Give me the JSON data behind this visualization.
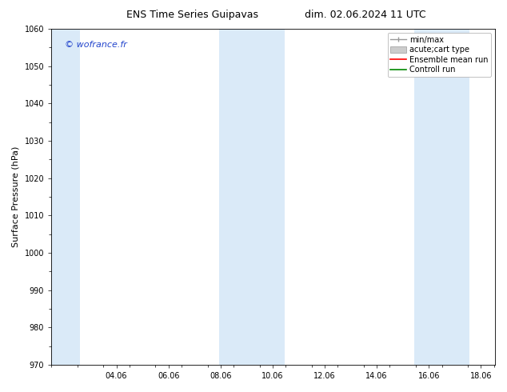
{
  "title_left": "ENS Time Series Guipavas",
  "title_right": "dim. 02.06.2024 11 UTC",
  "ylabel": "Surface Pressure (hPa)",
  "ylim": [
    970,
    1060
  ],
  "yticks": [
    970,
    980,
    990,
    1000,
    1010,
    1020,
    1030,
    1040,
    1050,
    1060
  ],
  "xtick_labels": [
    "04.06",
    "06.06",
    "08.06",
    "10.06",
    "12.06",
    "14.06",
    "16.06",
    "18.06"
  ],
  "xtick_positions_days": [
    2,
    4,
    6,
    8,
    10,
    12,
    14,
    16
  ],
  "watermark": "© wofrance.fr",
  "watermark_color": "#2244cc",
  "background_color": "#ffffff",
  "plot_bg_color": "#ffffff",
  "shaded_bands": [
    {
      "x_start_day": -0.5,
      "x_end_day": 0.6,
      "color": "#daeaf8"
    },
    {
      "x_start_day": 5.95,
      "x_end_day": 8.45,
      "color": "#daeaf8"
    },
    {
      "x_start_day": 13.45,
      "x_end_day": 15.55,
      "color": "#daeaf8"
    }
  ],
  "legend_entries": [
    {
      "label": "min/max",
      "type": "minmax"
    },
    {
      "label": "acute;cart type",
      "type": "bar"
    },
    {
      "label": "Ensemble mean run",
      "color": "#ff0000",
      "type": "line"
    },
    {
      "label": "Controll run",
      "color": "#008800",
      "type": "line"
    }
  ],
  "title_fontsize": 9,
  "axis_label_fontsize": 8,
  "tick_fontsize": 7,
  "legend_fontsize": 7,
  "xlim": [
    -0.5,
    16.54
  ]
}
